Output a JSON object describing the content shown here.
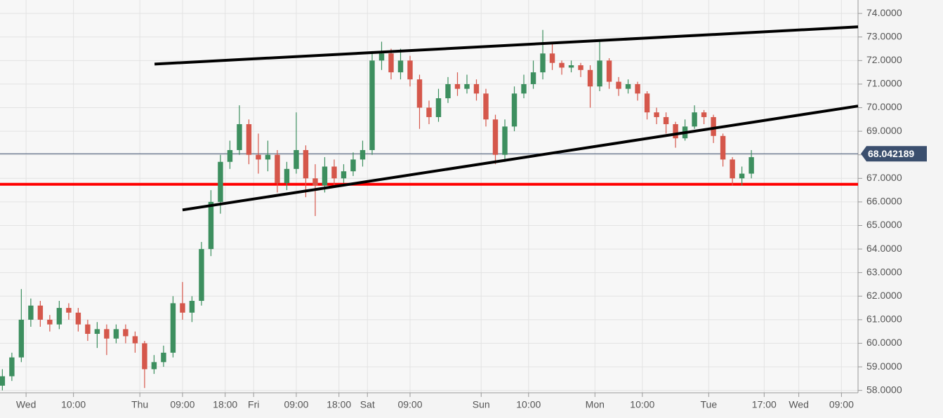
{
  "chart_data": {
    "type": "candlestick",
    "x": [
      -5,
      -3,
      -1,
      1,
      3,
      5,
      7,
      9,
      11,
      13,
      15,
      17,
      19,
      21,
      23,
      25,
      27,
      29,
      31,
      33,
      35,
      37,
      39,
      41,
      43,
      45,
      47,
      49,
      51,
      53,
      55,
      57,
      59,
      61,
      63,
      65,
      67,
      69,
      71,
      73,
      75,
      77,
      79,
      81,
      83,
      85,
      87,
      89,
      91,
      93,
      95,
      97,
      99,
      101,
      103,
      105,
      107,
      109,
      111,
      113,
      115,
      117,
      119,
      121,
      123,
      125,
      127,
      129,
      131,
      133,
      135,
      137,
      139,
      141,
      143,
      145,
      147,
      149,
      151,
      153
    ],
    "open": [
      58.2,
      58.6,
      59.4,
      61.0,
      61.6,
      61.0,
      60.8,
      61.5,
      61.3,
      60.8,
      60.4,
      60.6,
      60.2,
      60.6,
      60.3,
      60.0,
      58.9,
      59.2,
      59.6,
      61.7,
      61.3,
      61.8,
      64.0,
      66.0,
      67.7,
      68.2,
      69.3,
      68.0,
      67.8,
      68.0,
      66.8,
      67.4,
      68.2,
      67.0,
      66.7,
      67.5,
      67.0,
      67.3,
      67.8,
      68.2,
      72.0,
      72.3,
      71.5,
      72.0,
      71.2,
      70.0,
      69.6,
      70.4,
      71.0,
      70.8,
      71.0,
      70.6,
      69.5,
      68.0,
      69.2,
      70.6,
      71.0,
      71.5,
      72.3,
      71.9,
      71.7,
      71.8,
      71.6,
      70.9,
      72.0,
      71.1,
      70.8,
      71.0,
      70.6,
      69.8,
      69.6,
      69.3,
      68.7,
      69.2,
      69.8,
      69.6,
      68.8,
      67.8,
      67.0,
      67.2
    ],
    "high": [
      58.9,
      59.6,
      62.3,
      61.9,
      61.8,
      61.2,
      61.8,
      61.7,
      61.5,
      61.0,
      60.9,
      60.8,
      60.8,
      60.8,
      60.5,
      60.1,
      59.5,
      59.9,
      62.0,
      62.6,
      62.0,
      64.3,
      66.5,
      68.0,
      68.6,
      70.1,
      69.5,
      68.9,
      68.6,
      68.2,
      67.7,
      69.8,
      68.4,
      67.6,
      67.9,
      67.8,
      67.6,
      68.1,
      68.6,
      72.4,
      72.8,
      72.5,
      72.5,
      72.2,
      71.4,
      70.3,
      70.8,
      71.3,
      71.5,
      71.4,
      71.2,
      70.8,
      69.7,
      69.5,
      70.9,
      71.4,
      72.0,
      73.3,
      72.7,
      72.0,
      72.0,
      71.9,
      71.8,
      72.9,
      72.1,
      71.3,
      71.2,
      71.1,
      70.7,
      70.0,
      69.8,
      69.4,
      69.5,
      70.1,
      69.9,
      69.7,
      68.9,
      67.9,
      67.5,
      68.2
    ],
    "low": [
      58.0,
      58.4,
      59.2,
      60.7,
      60.7,
      60.5,
      60.6,
      61.0,
      60.5,
      60.1,
      59.8,
      59.5,
      60.0,
      60.0,
      59.6,
      58.1,
      58.7,
      59.0,
      59.4,
      61.0,
      60.9,
      61.6,
      63.7,
      65.5,
      67.4,
      68.0,
      67.6,
      67.2,
      67.3,
      66.4,
      66.5,
      67.2,
      66.2,
      65.4,
      66.4,
      66.7,
      66.8,
      67.1,
      67.5,
      68.0,
      71.6,
      71.2,
      71.2,
      70.9,
      69.1,
      69.3,
      69.4,
      70.2,
      70.5,
      70.6,
      70.3,
      69.2,
      67.6,
      67.7,
      69.0,
      70.4,
      70.8,
      71.2,
      71.6,
      71.4,
      71.5,
      71.3,
      70.0,
      70.7,
      70.8,
      70.5,
      70.6,
      70.3,
      69.5,
      69.3,
      68.9,
      68.3,
      68.6,
      69.1,
      69.3,
      68.5,
      67.5,
      66.7,
      66.7,
      67.0
    ],
    "close": [
      58.6,
      59.4,
      61.0,
      61.6,
      61.0,
      60.8,
      61.5,
      61.3,
      60.8,
      60.4,
      60.6,
      60.2,
      60.6,
      60.3,
      60.0,
      58.9,
      59.2,
      59.6,
      61.7,
      61.3,
      61.8,
      64.0,
      66.0,
      67.7,
      68.2,
      69.3,
      68.0,
      67.8,
      68.0,
      66.8,
      67.4,
      68.2,
      67.0,
      66.7,
      67.5,
      67.0,
      67.3,
      67.8,
      68.2,
      72.0,
      72.3,
      71.5,
      72.0,
      71.2,
      70.0,
      69.6,
      70.4,
      71.0,
      70.8,
      71.0,
      70.6,
      69.5,
      68.0,
      69.2,
      70.6,
      71.0,
      71.5,
      72.3,
      71.9,
      71.7,
      71.8,
      71.6,
      70.9,
      72.0,
      71.1,
      70.8,
      71.0,
      70.6,
      69.8,
      69.6,
      69.3,
      68.7,
      69.2,
      69.8,
      69.6,
      68.8,
      67.8,
      67.0,
      67.2,
      67.9
    ],
    "up_color": "#3d8f5f",
    "down_color": "#d5574b",
    "xlim": [
      -5.5,
      175.5
    ],
    "ylim": [
      57.9,
      74.57
    ],
    "xticks": [
      {
        "value": 0,
        "label": "Wed"
      },
      {
        "value": 10,
        "label": "10:00"
      },
      {
        "value": 24,
        "label": "Thu"
      },
      {
        "value": 33,
        "label": "09:00"
      },
      {
        "value": 42,
        "label": "18:00"
      },
      {
        "value": 48,
        "label": "Fri"
      },
      {
        "value": 57,
        "label": "09:00"
      },
      {
        "value": 66,
        "label": "18:00"
      },
      {
        "value": 72,
        "label": "Sat"
      },
      {
        "value": 81,
        "label": "09:00"
      },
      {
        "value": 96,
        "label": "Sun"
      },
      {
        "value": 106,
        "label": "10:00"
      },
      {
        "value": 120,
        "label": "Mon"
      },
      {
        "value": 130,
        "label": "10:00"
      },
      {
        "value": 144,
        "label": "Tue"
      },
      {
        "value": 155.7,
        "label": "17:00"
      },
      {
        "value": 163,
        "label": "Wed"
      },
      {
        "value": 172,
        "label": "09:00"
      }
    ],
    "yticks": [
      {
        "value": 58,
        "label": "58.0000"
      },
      {
        "value": 59,
        "label": "59.0000"
      },
      {
        "value": 60,
        "label": "60.0000"
      },
      {
        "value": 61,
        "label": "61.0000"
      },
      {
        "value": 62,
        "label": "62.0000"
      },
      {
        "value": 63,
        "label": "63.0000"
      },
      {
        "value": 64,
        "label": "64.0000"
      },
      {
        "value": 65,
        "label": "65.0000"
      },
      {
        "value": 66,
        "label": "66.0000"
      },
      {
        "value": 67,
        "label": "67.0000"
      },
      {
        "value": 68,
        "label": "68.0000"
      },
      {
        "value": 69,
        "label": "69.0000"
      },
      {
        "value": 70,
        "label": "70.0000"
      },
      {
        "value": 71,
        "label": "71.0000"
      },
      {
        "value": 72,
        "label": "72.0000"
      },
      {
        "value": 73,
        "label": "73.0000"
      },
      {
        "value": 74,
        "label": "74.0000"
      }
    ],
    "grid": true,
    "last_price": 68.042189,
    "last_price_color": "#3b4f6e",
    "horizontal_level": 66.75,
    "horizontal_level_color": "#ff0000",
    "trend_lines": [
      {
        "x": [
          27.1,
          175.5
        ],
        "y": [
          71.85,
          73.43
        ],
        "color": "#000000"
      },
      {
        "x": [
          33,
          175.5
        ],
        "y": [
          65.66,
          70.07
        ],
        "color": "#000000"
      }
    ]
  }
}
